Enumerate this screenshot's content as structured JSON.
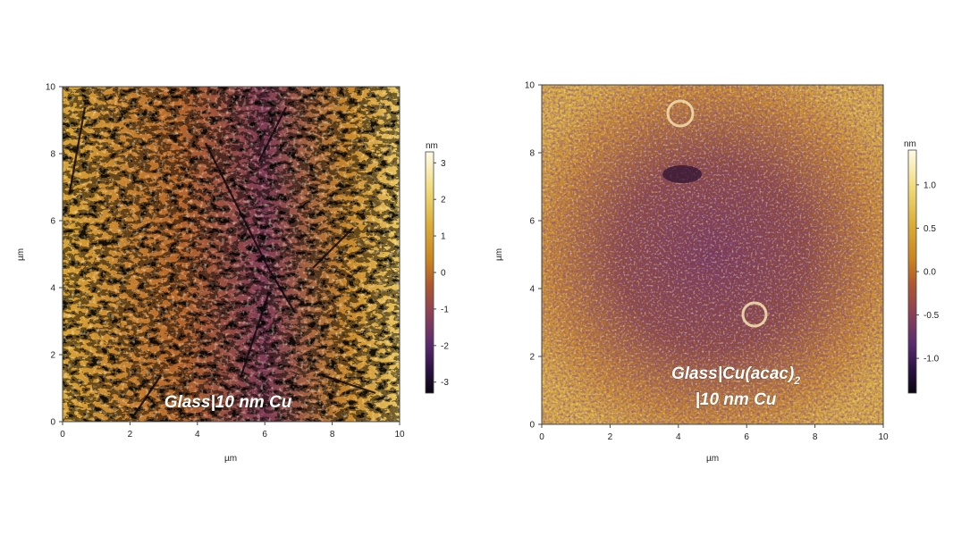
{
  "panels": [
    {
      "id": "left",
      "caption_main": "Glass|10 nm Cu",
      "caption_sub": "",
      "caption_line2": "",
      "x_axis_label": "µm",
      "y_axis_label": "µm",
      "x_ticks": [
        "0",
        "2",
        "4",
        "6",
        "8",
        "10"
      ],
      "y_ticks": [
        "0",
        "2",
        "4",
        "6",
        "8",
        "10"
      ],
      "colorbar_unit": "nm",
      "colorbar_ticks": [
        "3",
        "2",
        "1",
        "0",
        "-1",
        "-2",
        "-3"
      ],
      "colorbar_range": [
        -3.3,
        3.3
      ]
    },
    {
      "id": "right",
      "caption_main": "Glass|Cu(acac)",
      "caption_sub": "2",
      "caption_line2": "|10 nm Cu",
      "x_axis_label": "µm",
      "y_axis_label": "µm",
      "x_ticks": [
        "0",
        "2",
        "4",
        "6",
        "8",
        "10"
      ],
      "y_ticks": [
        "0",
        "2",
        "4",
        "6",
        "8",
        "10"
      ],
      "colorbar_unit": "nm",
      "colorbar_ticks": [
        "1.0",
        "0.5",
        "0.0",
        "-0.5",
        "-1.0"
      ],
      "colorbar_range": [
        -1.4,
        1.4
      ]
    }
  ],
  "colormap": [
    "#0a0510",
    "#2d1245",
    "#5a2a6e",
    "#8a3f58",
    "#b0582e",
    "#c98420",
    "#dcae3a",
    "#f1dc7c",
    "#fffbe6"
  ]
}
